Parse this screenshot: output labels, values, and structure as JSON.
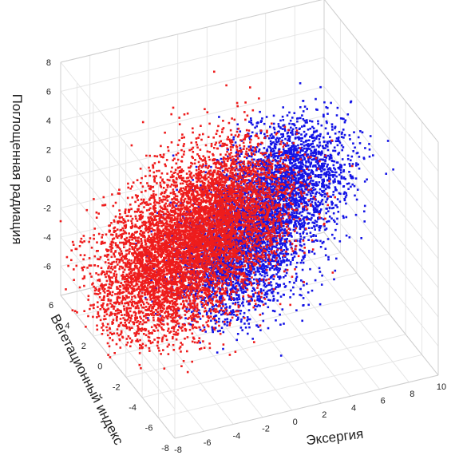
{
  "chart_data": {
    "type": "scatter",
    "projection": "3d",
    "title": "",
    "xlabel": "Эксергия",
    "ylabel": "Вегетационный индекс",
    "zlabel": "Поглощенная радиация",
    "xlim": [
      -8,
      10
    ],
    "ylim": [
      -8,
      6
    ],
    "zlim": [
      -8,
      8
    ],
    "x_ticks": [
      "-8",
      "-6",
      "-4",
      "-2",
      "0",
      "2",
      "4",
      "6",
      "8",
      "10"
    ],
    "y_ticks": [
      "-8",
      "-6",
      "-4",
      "-2",
      "0",
      "2",
      "4",
      "6"
    ],
    "z_ticks": [
      "-8",
      "-6",
      "-4",
      "-2",
      "0",
      "2",
      "4",
      "6",
      "8"
    ],
    "grid": true,
    "series": [
      {
        "color": "#1414e6",
        "cloud": {
          "center": [
            1.5,
            -1.0,
            -0.5
          ],
          "direction": [
            0.45,
            -0.2,
            0.85
          ],
          "extent": [
            -1.2,
            1.4
          ],
          "spread": [
            1.8,
            1.6,
            1.2
          ],
          "point_count": 5000
        }
      },
      {
        "color": "#ee1c1c",
        "cloud": {
          "center": [
            -2.0,
            0.5,
            -1.8
          ],
          "direction": [
            0.55,
            -0.25,
            0.8
          ],
          "extent": [
            -1.2,
            1.2
          ],
          "spread": [
            2.0,
            1.8,
            1.6
          ],
          "point_count": 7000
        }
      }
    ]
  }
}
